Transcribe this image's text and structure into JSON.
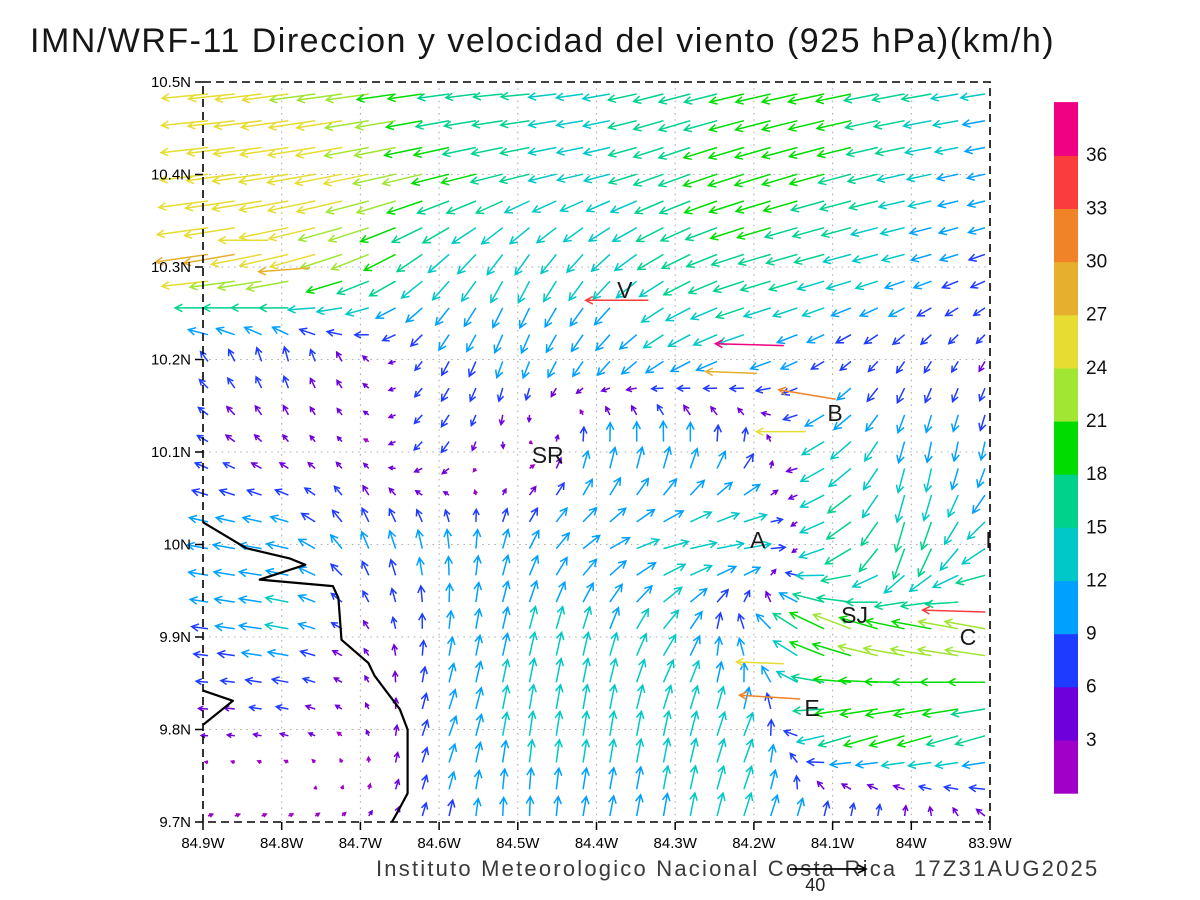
{
  "title": "IMN/WRF-11 Direccion y velocidad del viento (925 hPa)(km/h)",
  "caption": "Instituto Meteorologico Nacional Costa Rica  17Z31AUG2025",
  "axes": {
    "lat_ticks": [
      "10.5N",
      "10.4N",
      "10.3N",
      "10.2N",
      "10.1N",
      "10N",
      "9.9N",
      "9.8N",
      "9.7N"
    ],
    "lon_ticks": [
      "84.9W",
      "84.8W",
      "84.7W",
      "84.6W",
      "84.5W",
      "84.4W",
      "84.3W",
      "84.2W",
      "84.1W",
      "84W",
      "83.9W"
    ]
  },
  "colorbar": {
    "levels": [
      3,
      6,
      9,
      12,
      15,
      18,
      21,
      24,
      27,
      30,
      33,
      36
    ],
    "labels": [
      "3",
      "6",
      "9",
      "12",
      "15",
      "18",
      "21",
      "24",
      "27",
      "30",
      "33",
      "36"
    ],
    "colors": [
      "#A000C8",
      "#6E00DC",
      "#1E3CFF",
      "#00A0FF",
      "#00C8C8",
      "#00D28C",
      "#00DC00",
      "#A0E632",
      "#E6DC32",
      "#E6AF2D",
      "#F08228",
      "#FA3C3C",
      "#F00082"
    ]
  },
  "reference_vector": {
    "label": "40",
    "speed": 40
  },
  "station_labels": [
    {
      "text": "V",
      "lon": -84.364,
      "lat": 10.275
    },
    {
      "text": "B",
      "lon": -84.097,
      "lat": 10.142
    },
    {
      "text": "SR",
      "lon": -84.462,
      "lat": 10.097
    },
    {
      "text": "A",
      "lon": -84.195,
      "lat": 10.005
    },
    {
      "text": "SJ",
      "lon": -84.072,
      "lat": 9.924
    },
    {
      "text": "C",
      "lon": -83.928,
      "lat": 9.9
    },
    {
      "text": "I",
      "lon": -83.902,
      "lat": 10.005
    },
    {
      "text": "E",
      "lon": -84.126,
      "lat": 9.823
    }
  ],
  "chart_data": {
    "type": "vector_field",
    "title": "IMN/WRF-11 Direccion y velocidad del viento (925 hPa)(km/h)",
    "units": "km/h",
    "level": "925 hPa",
    "lon_range": [
      -84.9,
      -83.9
    ],
    "lat_range": [
      9.7,
      10.5
    ],
    "grid_lons": [
      -84.9,
      -84.8,
      -84.7,
      -84.6,
      -84.5,
      -84.4,
      -84.3,
      -84.2,
      -84.1,
      -84.0,
      -83.9
    ],
    "grid_lats": [
      10.5,
      10.4,
      10.3,
      10.2,
      10.1,
      10.0,
      9.9,
      9.8,
      9.7
    ],
    "u": [
      [
        -24,
        -24,
        -23,
        -16,
        -15,
        -14,
        -16,
        -18,
        -19,
        -17,
        -13
      ],
      [
        -25,
        -26,
        -24,
        -20,
        -16,
        -13,
        -16,
        -19,
        -18,
        -14,
        -9
      ],
      [
        -28,
        -26,
        -20,
        -10,
        -6,
        -8,
        -14,
        -17,
        -15,
        -11,
        -8
      ],
      [
        -4,
        -2,
        -3,
        -4,
        -3,
        -6,
        -10,
        -12,
        -6,
        -4,
        -3
      ],
      [
        -6,
        -3,
        -2,
        -5,
        2,
        1,
        1,
        3,
        -14,
        -2,
        -2
      ],
      [
        -11,
        -12,
        -4,
        -2,
        4,
        10,
        14,
        15,
        -16,
        -4,
        -12
      ],
      [
        -8,
        -13,
        -3,
        1,
        3,
        3,
        8,
        -6,
        -20,
        -22,
        -22
      ],
      [
        -4,
        -5,
        -2,
        4,
        2,
        2,
        3,
        5,
        -18,
        -20,
        -16
      ],
      [
        3,
        3,
        2,
        2,
        0,
        2,
        2,
        4,
        3,
        2,
        -4
      ]
    ],
    "v": [
      [
        -2,
        -3,
        -3,
        -2,
        -1,
        -2,
        -4,
        -4,
        -4,
        -3,
        -2
      ],
      [
        -3,
        -4,
        -5,
        -5,
        -4,
        -3,
        -6,
        -6,
        -5,
        -3,
        -2
      ],
      [
        -4,
        -6,
        -8,
        -10,
        -12,
        -10,
        -8,
        -5,
        -4,
        -3,
        -3
      ],
      [
        5,
        8,
        4,
        -7,
        -9,
        -8,
        -6,
        -4,
        -4,
        -6,
        -5
      ],
      [
        3,
        3,
        2,
        -6,
        -2,
        12,
        13,
        8,
        -9,
        -12,
        -10
      ],
      [
        2,
        2,
        9,
        10,
        10,
        6,
        3,
        2,
        -6,
        -18,
        -8
      ],
      [
        1,
        2,
        3,
        9,
        12,
        12,
        10,
        8,
        10,
        6,
        5
      ],
      [
        0,
        1,
        2,
        10,
        13,
        13,
        13,
        12,
        -6,
        -6,
        -5
      ],
      [
        1,
        1,
        2,
        8,
        10,
        10,
        12,
        12,
        8,
        6,
        4
      ]
    ],
    "feature_vectors": [
      {
        "lon": -84.162,
        "lat": 10.215,
        "u": -36,
        "v": 1
      },
      {
        "lon": -84.196,
        "lat": 10.185,
        "u": -27,
        "v": 1
      },
      {
        "lon": -84.334,
        "lat": 10.264,
        "u": -33,
        "v": 0
      },
      {
        "lon": -84.096,
        "lat": 10.157,
        "u": -30,
        "v": 5
      },
      {
        "lon": -84.134,
        "lat": 10.122,
        "u": -26,
        "v": 0
      },
      {
        "lon": -83.906,
        "lat": 9.927,
        "u": -33,
        "v": 1
      },
      {
        "lon": -84.141,
        "lat": 9.833,
        "u": -32,
        "v": 2
      },
      {
        "lon": -84.162,
        "lat": 9.871,
        "u": -25,
        "v": 1
      },
      {
        "lon": -84.817,
        "lat": 10.329,
        "u": -26,
        "v": 0
      },
      {
        "lon": -84.764,
        "lat": 10.299,
        "u": -27,
        "v": -2
      }
    ],
    "coastline": [
      [
        -84.9,
        10.024
      ],
      [
        -84.845,
        9.996
      ],
      [
        -84.79,
        9.985
      ],
      [
        -84.77,
        9.978
      ],
      [
        -84.828,
        9.962
      ],
      [
        -84.735,
        9.955
      ],
      [
        -84.728,
        9.942
      ],
      [
        -84.724,
        9.897
      ],
      [
        -84.69,
        9.872
      ],
      [
        -84.682,
        9.858
      ],
      [
        -84.65,
        9.822
      ],
      [
        -84.64,
        9.8
      ],
      [
        -84.64,
        9.731
      ],
      [
        -84.652,
        9.712
      ],
      [
        -84.66,
        9.7
      ]
    ],
    "coast_spit": [
      [
        -84.9,
        9.842
      ],
      [
        -84.862,
        9.831
      ],
      [
        -84.9,
        9.805
      ]
    ]
  }
}
